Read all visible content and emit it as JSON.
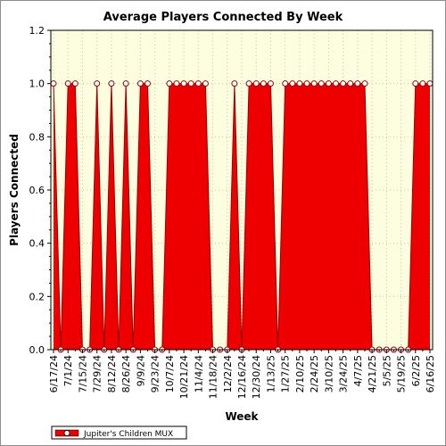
{
  "chart_data": {
    "type": "area",
    "title": "Average Players Connected By Week",
    "xlabel": "Week",
    "ylabel": "Players Connected",
    "ylim": [
      0,
      1.2
    ],
    "yticks": [
      "0.0",
      "0.2",
      "0.4",
      "0.6",
      "0.8",
      "1.0",
      "1.2"
    ],
    "grid": true,
    "legend_position": "bottom-left",
    "colors": {
      "plot_background": "#fdfde0",
      "series": "#ee0000",
      "outline": "#990000",
      "marker_fill": "#ffffff"
    },
    "x_tick_labels": [
      "6/17/24",
      "7/1/24",
      "7/15/24",
      "7/29/24",
      "8/12/24",
      "8/26/24",
      "9/9/24",
      "9/23/24",
      "10/7/24",
      "10/21/24",
      "11/4/24",
      "11/18/24",
      "12/2/24",
      "12/16/24",
      "12/30/24",
      "1/13/25",
      "1/27/25",
      "2/10/25",
      "2/24/25",
      "3/10/25",
      "3/24/25",
      "4/7/25",
      "4/21/25",
      "5/5/25",
      "5/19/25",
      "6/2/25",
      "6/16/25"
    ],
    "series": [
      {
        "name": "Jupiter's Children MUX",
        "x": [
          "6/17/24",
          "6/24/24",
          "7/1/24",
          "7/8/24",
          "7/15/24",
          "7/22/24",
          "7/29/24",
          "8/5/24",
          "8/12/24",
          "8/19/24",
          "8/26/24",
          "9/2/24",
          "9/9/24",
          "9/16/24",
          "9/23/24",
          "9/30/24",
          "10/7/24",
          "10/14/24",
          "10/21/24",
          "10/28/24",
          "11/4/24",
          "11/11/24",
          "11/18/24",
          "11/25/24",
          "12/2/24",
          "12/9/24",
          "12/16/24",
          "12/23/24",
          "12/30/24",
          "1/6/25",
          "1/13/25",
          "1/20/25",
          "1/27/25",
          "2/3/25",
          "2/10/25",
          "2/17/25",
          "2/24/25",
          "3/3/25",
          "3/10/25",
          "3/17/25",
          "3/24/25",
          "3/31/25",
          "4/7/25",
          "4/14/25",
          "4/21/25",
          "4/28/25",
          "5/5/25",
          "5/12/25",
          "5/19/25",
          "5/26/25",
          "6/2/25",
          "6/9/25",
          "6/16/25"
        ],
        "values": [
          1,
          0,
          1,
          1,
          0,
          0,
          1,
          0,
          1,
          0,
          1,
          0,
          1,
          1,
          0,
          0,
          1,
          1,
          1,
          1,
          1,
          1,
          0,
          0,
          0,
          1,
          0,
          1,
          1,
          1,
          1,
          0,
          1,
          1,
          1,
          1,
          1,
          1,
          1,
          1,
          1,
          1,
          1,
          1,
          0,
          0,
          0,
          0,
          0,
          0,
          1,
          1,
          1
        ]
      }
    ]
  }
}
